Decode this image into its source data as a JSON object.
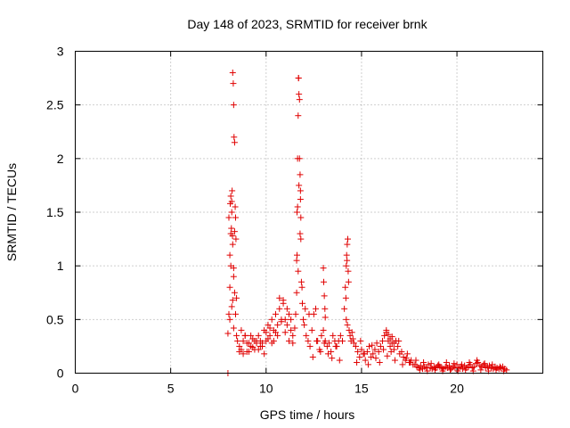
{
  "chart_data": {
    "type": "scatter",
    "title": "Day 148 of 2023, SRMTID for receiver brnk",
    "xlabel": "GPS time / hours",
    "ylabel": "SRMTID / TECUs",
    "xlim": [
      0,
      24.5
    ],
    "ylim": [
      0,
      3
    ],
    "xticks": [
      0,
      5,
      10,
      15,
      20
    ],
    "yticks": [
      0,
      0.5,
      1,
      1.5,
      2,
      2.5,
      3
    ],
    "ytick_labels": [
      "0",
      "0.5",
      "1",
      "1.5",
      "2",
      "2.5",
      "3"
    ],
    "grid": true,
    "marker": "+",
    "color": "#e00000",
    "series": [
      {
        "name": "SRMTID",
        "x": [
          8.0,
          8.05,
          8.1,
          8.15,
          8.2,
          8.22,
          8.25,
          8.28,
          8.3,
          8.32,
          8.35,
          8.38,
          8.4,
          8.42,
          8.45,
          8.1,
          8.15,
          8.2,
          8.25,
          8.3,
          8.35,
          8.05,
          8.12,
          8.18,
          8.24,
          8.3,
          8.1,
          8.2,
          8.3,
          8.15,
          8.25,
          8.35,
          8.4,
          8.45,
          8.5,
          8.6,
          8.7,
          8.8,
          8.9,
          9.0,
          9.1,
          9.2,
          9.3,
          9.4,
          9.5,
          9.6,
          9.7,
          9.8,
          9.9,
          10.0,
          10.1,
          10.2,
          10.3,
          10.4,
          10.5,
          10.6,
          10.7,
          10.8,
          10.9,
          11.0,
          11.1,
          11.2,
          11.3,
          11.4,
          11.5,
          8.6,
          8.8,
          9.0,
          9.2,
          9.4,
          9.6,
          9.8,
          10.0,
          10.2,
          10.4,
          10.6,
          10.8,
          11.0,
          11.2,
          11.4,
          8.7,
          8.9,
          9.1,
          9.3,
          9.5,
          9.7,
          9.9,
          10.1,
          10.3,
          10.5,
          10.7,
          10.9,
          11.1,
          11.3,
          11.55,
          11.6,
          11.62,
          11.65,
          11.68,
          11.7,
          11.72,
          11.75,
          11.78,
          11.8,
          11.82,
          11.85,
          11.6,
          11.65,
          11.7,
          11.75,
          11.8,
          11.62,
          11.72,
          11.82,
          11.68,
          11.78,
          11.88,
          11.9,
          11.95,
          12.0,
          12.1,
          12.2,
          12.3,
          12.4,
          12.5,
          12.6,
          12.7,
          12.8,
          12.9,
          13.0,
          13.1,
          13.2,
          13.3,
          13.4,
          13.5,
          13.6,
          13.7,
          13.8,
          13.9,
          14.0,
          12.05,
          12.25,
          12.45,
          12.65,
          12.85,
          13.05,
          13.25,
          13.45,
          13.65,
          13.85,
          13.0,
          13.02,
          13.05,
          13.08,
          13.1,
          14.1,
          14.15,
          14.2,
          14.22,
          14.25,
          14.28,
          14.3,
          14.18,
          14.24,
          14.32,
          14.2,
          14.26,
          14.35,
          14.4,
          14.45,
          14.5,
          14.55,
          14.6,
          14.7,
          14.8,
          14.9,
          15.0,
          15.1,
          15.2,
          15.3,
          15.4,
          15.5,
          15.6,
          15.7,
          15.8,
          15.9,
          16.0,
          16.1,
          16.2,
          16.3,
          16.4,
          16.5,
          16.6,
          16.7,
          16.8,
          16.9,
          17.0,
          17.1,
          17.2,
          17.3,
          17.4,
          17.5,
          17.6,
          17.7,
          14.75,
          14.95,
          15.15,
          15.35,
          15.55,
          15.75,
          15.95,
          16.15,
          16.35,
          16.55,
          16.75,
          16.95,
          17.15,
          17.35,
          17.55,
          16.3,
          16.4,
          16.5,
          16.6,
          16.7,
          16.8,
          17.8,
          17.9,
          18.0,
          18.1,
          18.2,
          18.3,
          18.4,
          18.5,
          18.6,
          18.7,
          18.8,
          18.9,
          19.0,
          19.1,
          19.2,
          19.3,
          19.4,
          19.5,
          19.6,
          19.7,
          19.8,
          19.9,
          20.0,
          20.1,
          20.2,
          20.3,
          20.4,
          20.5,
          20.6,
          20.7,
          20.8,
          20.9,
          21.0,
          21.1,
          21.2,
          21.3,
          21.4,
          21.5,
          21.6,
          21.7,
          21.8,
          21.9,
          22.0,
          22.1,
          22.2,
          22.3,
          22.4,
          22.5,
          22.6,
          17.85,
          18.05,
          18.25,
          18.45,
          18.65,
          18.85,
          19.05,
          19.25,
          19.45,
          19.65,
          19.85,
          20.05,
          20.25,
          20.45,
          20.65,
          20.85,
          21.05,
          21.25,
          21.45,
          21.65,
          21.85,
          22.05,
          22.25,
          22.45,
          8.0
        ],
        "y": [
          0.37,
          0.55,
          0.8,
          1.3,
          1.6,
          1.7,
          2.8,
          2.7,
          2.5,
          2.2,
          2.15,
          1.55,
          1.45,
          1.25,
          0.7,
          1.1,
          1.65,
          1.5,
          1.2,
          0.9,
          0.75,
          1.45,
          1.58,
          1.35,
          1.28,
          0.98,
          0.5,
          0.62,
          0.42,
          1.0,
          0.68,
          1.32,
          0.55,
          0.35,
          0.3,
          0.25,
          0.22,
          0.3,
          0.35,
          0.2,
          0.28,
          0.25,
          0.32,
          0.22,
          0.3,
          0.35,
          0.25,
          0.28,
          0.4,
          0.3,
          0.45,
          0.35,
          0.5,
          0.4,
          0.55,
          0.45,
          0.6,
          0.5,
          0.65,
          0.5,
          0.45,
          0.55,
          0.4,
          0.35,
          0.42,
          0.2,
          0.18,
          0.28,
          0.35,
          0.3,
          0.22,
          0.25,
          0.38,
          0.42,
          0.3,
          0.35,
          0.48,
          0.38,
          0.3,
          0.28,
          0.4,
          0.35,
          0.2,
          0.24,
          0.28,
          0.3,
          0.18,
          0.32,
          0.28,
          0.38,
          0.7,
          0.68,
          0.6,
          0.5,
          0.55,
          1.05,
          1.5,
          2.0,
          2.4,
          2.75,
          2.6,
          2.0,
          1.85,
          1.7,
          1.25,
          0.85,
          0.75,
          1.55,
          2.75,
          2.55,
          1.62,
          1.1,
          1.75,
          1.45,
          0.95,
          1.3,
          0.8,
          0.65,
          0.5,
          0.45,
          0.35,
          0.3,
          0.25,
          0.4,
          0.55,
          0.6,
          0.3,
          0.22,
          0.35,
          0.4,
          0.3,
          0.25,
          0.28,
          0.2,
          0.35,
          0.3,
          0.25,
          0.3,
          0.35,
          0.3,
          0.6,
          0.55,
          0.15,
          0.3,
          0.2,
          0.28,
          0.18,
          0.14,
          0.25,
          0.12,
          0.98,
          0.85,
          0.72,
          0.6,
          0.52,
          0.6,
          0.8,
          1.0,
          1.1,
          1.2,
          1.25,
          0.95,
          0.7,
          1.05,
          0.85,
          0.5,
          0.45,
          0.4,
          0.35,
          0.3,
          0.38,
          0.32,
          0.28,
          0.25,
          0.2,
          0.15,
          0.22,
          0.18,
          0.12,
          0.2,
          0.25,
          0.15,
          0.18,
          0.22,
          0.28,
          0.2,
          0.25,
          0.3,
          0.35,
          0.38,
          0.3,
          0.25,
          0.28,
          0.22,
          0.3,
          0.25,
          0.18,
          0.2,
          0.15,
          0.12,
          0.18,
          0.1,
          0.12,
          0.08,
          0.1,
          0.3,
          0.18,
          0.08,
          0.26,
          0.14,
          0.1,
          0.22,
          0.16,
          0.2,
          0.12,
          0.3,
          0.08,
          0.14,
          0.1,
          0.4,
          0.36,
          0.32,
          0.34,
          0.28,
          0.3,
          0.08,
          0.06,
          0.05,
          0.07,
          0.04,
          0.06,
          0.05,
          0.08,
          0.05,
          0.04,
          0.06,
          0.05,
          0.07,
          0.06,
          0.05,
          0.04,
          0.06,
          0.05,
          0.07,
          0.04,
          0.06,
          0.05,
          0.08,
          0.05,
          0.06,
          0.04,
          0.07,
          0.05,
          0.06,
          0.08,
          0.05,
          0.06,
          0.09,
          0.1,
          0.07,
          0.06,
          0.08,
          0.05,
          0.06,
          0.07,
          0.05,
          0.04,
          0.06,
          0.05,
          0.04,
          0.05,
          0.06,
          0.04,
          0.03,
          0.12,
          0.03,
          0.1,
          0.02,
          0.09,
          0.03,
          0.08,
          0.02,
          0.1,
          0.03,
          0.09,
          0.02,
          0.08,
          0.03,
          0.1,
          0.02,
          0.12,
          0.03,
          0.09,
          0.02,
          0.08,
          0.03,
          0.06,
          0.02,
          0.0
        ]
      }
    ]
  }
}
